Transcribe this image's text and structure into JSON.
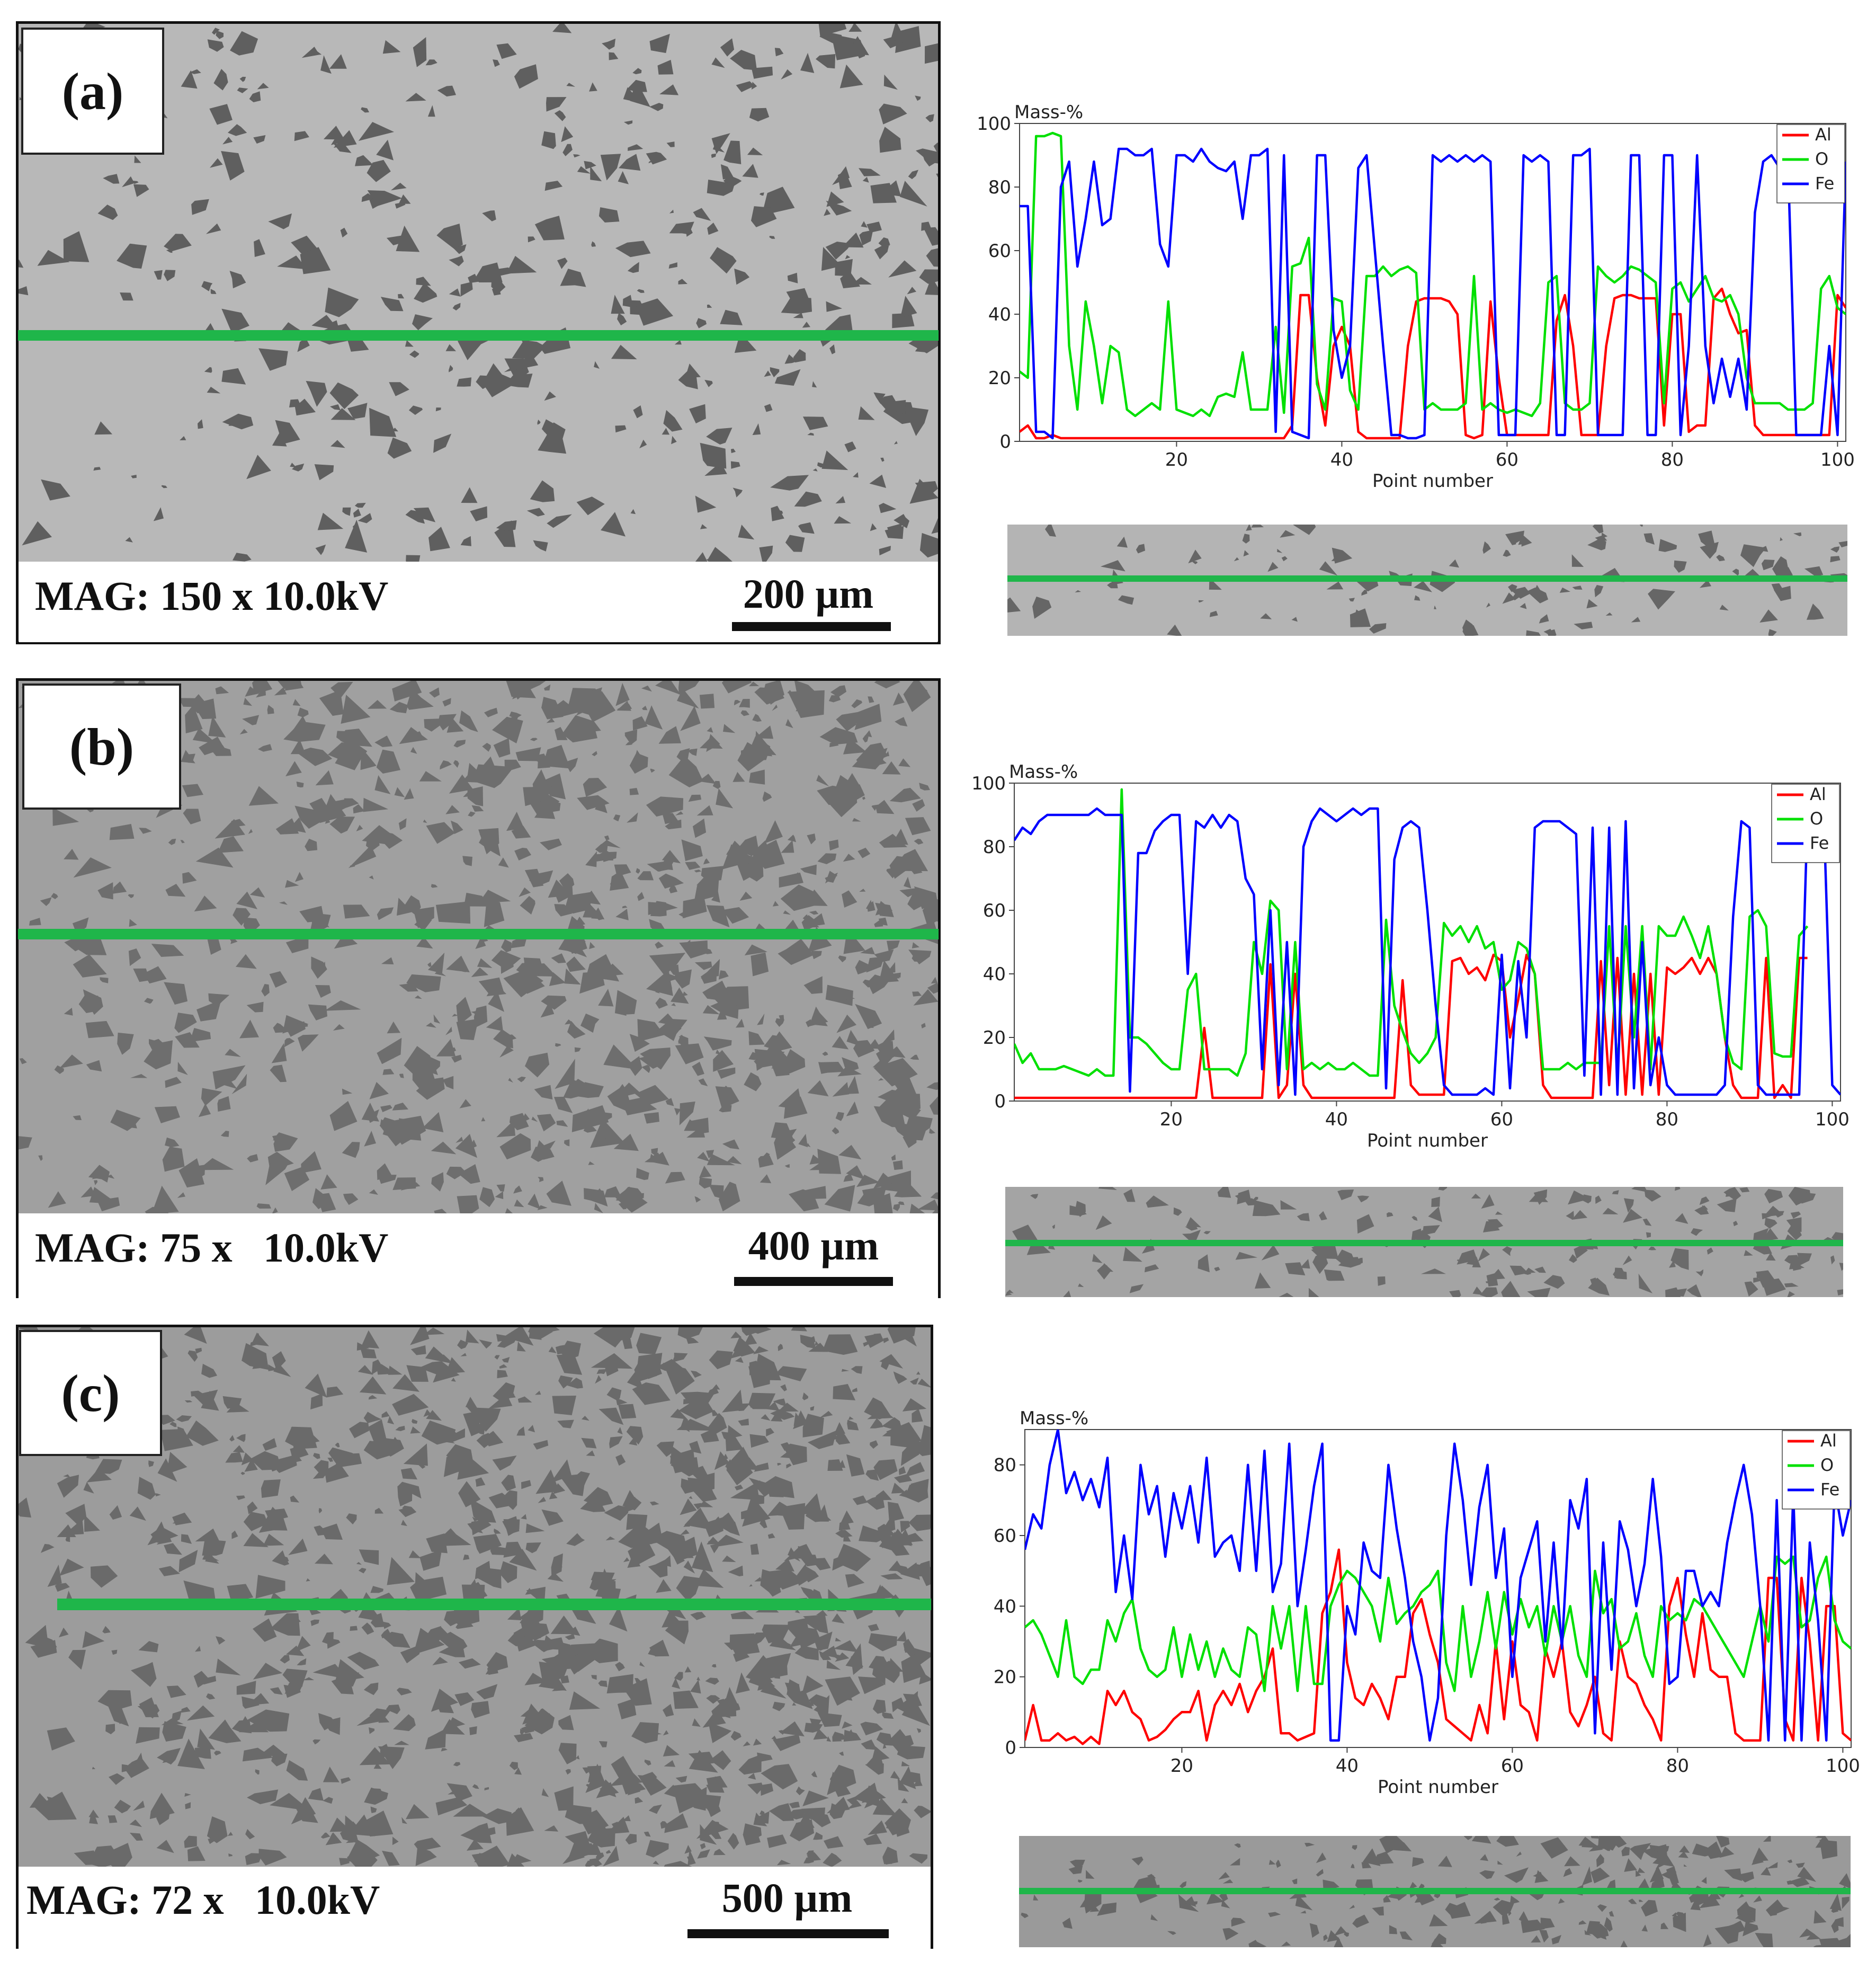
{
  "panels": [
    {
      "label": "(a)",
      "mag": "MAG: 150 x 10.0kV",
      "scale": "200 µm"
    },
    {
      "label": "(b)",
      "mag": "MAG: 75 x   10.0kV",
      "scale": "400 µm"
    },
    {
      "label": "(c)",
      "mag": "MAG: 72 x   10.0kV",
      "scale": "500 µm"
    }
  ],
  "colors": {
    "Al": "#ff0000",
    "O": "#00e000",
    "Fe": "#0000ff",
    "scan_line": "#1fb64a"
  },
  "chart_data": [
    {
      "type": "line",
      "ylabel": "Mass-%",
      "xlabel": "Point number",
      "xlim": [
        1,
        101
      ],
      "ylim": [
        0,
        100
      ],
      "xticks": [
        20,
        40,
        60,
        80,
        100
      ],
      "yticks": [
        0,
        20,
        40,
        60,
        80,
        100
      ],
      "legend": "top-right",
      "series": [
        {
          "name": "Al",
          "color": "#ff0000",
          "values": [
            3,
            5,
            1,
            1,
            2,
            1,
            1,
            1,
            1,
            1,
            1,
            1,
            1,
            1,
            1,
            1,
            1,
            1,
            1,
            1,
            1,
            1,
            1,
            1,
            1,
            1,
            1,
            1,
            1,
            1,
            1,
            1,
            1,
            5,
            46,
            46,
            20,
            5,
            30,
            36,
            30,
            3,
            1,
            1,
            1,
            1,
            1,
            30,
            44,
            45,
            45,
            45,
            44,
            40,
            2,
            1,
            2,
            44,
            20,
            2,
            2,
            2,
            2,
            2,
            2,
            38,
            46,
            30,
            2,
            2,
            2,
            30,
            45,
            46,
            46,
            45,
            45,
            45,
            5,
            40,
            40,
            3,
            5,
            5,
            45,
            48,
            40,
            34,
            35,
            5,
            2,
            2,
            2,
            2,
            2,
            2,
            2,
            2,
            2,
            46,
            42
          ]
        },
        {
          "name": "O",
          "color": "#00e000",
          "values": [
            22,
            20,
            96,
            96,
            97,
            96,
            30,
            10,
            44,
            30,
            12,
            30,
            28,
            10,
            8,
            10,
            12,
            10,
            44,
            10,
            9,
            8,
            10,
            8,
            14,
            15,
            14,
            28,
            10,
            10,
            10,
            36,
            9,
            55,
            56,
            64,
            18,
            10,
            45,
            44,
            16,
            10,
            52,
            52,
            55,
            52,
            54,
            55,
            53,
            10,
            12,
            10,
            10,
            10,
            12,
            52,
            10,
            12,
            10,
            9,
            10,
            9,
            8,
            12,
            50,
            52,
            12,
            10,
            10,
            12,
            55,
            52,
            50,
            52,
            55,
            54,
            52,
            50,
            12,
            48,
            50,
            44,
            48,
            52,
            45,
            44,
            46,
            40,
            20,
            12,
            12,
            12,
            12,
            10,
            10,
            10,
            12,
            48,
            52,
            42,
            40
          ]
        },
        {
          "name": "Fe",
          "color": "#0000ff",
          "values": [
            74,
            74,
            3,
            3,
            1,
            80,
            88,
            55,
            70,
            88,
            68,
            70,
            92,
            92,
            90,
            90,
            92,
            62,
            55,
            90,
            90,
            88,
            92,
            88,
            86,
            85,
            88,
            70,
            90,
            90,
            92,
            3,
            90,
            3,
            2,
            1,
            90,
            90,
            35,
            20,
            30,
            86,
            90,
            60,
            30,
            2,
            2,
            1,
            1,
            2,
            90,
            88,
            90,
            88,
            90,
            88,
            90,
            88,
            2,
            2,
            2,
            90,
            88,
            90,
            88,
            2,
            2,
            90,
            90,
            92,
            2,
            2,
            2,
            2,
            90,
            90,
            2,
            2,
            90,
            90,
            2,
            30,
            90,
            30,
            12,
            26,
            14,
            26,
            10,
            72,
            88,
            90,
            86,
            88,
            2,
            2,
            2,
            2,
            30,
            2,
            88
          ]
        }
      ]
    },
    {
      "type": "line",
      "ylabel": "Mass-%",
      "xlabel": "Point number",
      "xlim": [
        1,
        101
      ],
      "ylim": [
        0,
        100
      ],
      "xticks": [
        20,
        40,
        60,
        80,
        100
      ],
      "yticks": [
        0,
        20,
        40,
        60,
        80,
        100
      ],
      "legend": "top-right",
      "series": [
        {
          "name": "Al",
          "color": "#ff0000",
          "values": [
            1,
            1,
            1,
            1,
            1,
            1,
            1,
            1,
            1,
            1,
            1,
            1,
            1,
            1,
            1,
            1,
            1,
            1,
            1,
            1,
            1,
            1,
            1,
            23,
            1,
            1,
            1,
            1,
            1,
            1,
            1,
            43,
            1,
            5,
            40,
            5,
            1,
            1,
            1,
            1,
            1,
            1,
            1,
            1,
            1,
            1,
            1,
            38,
            5,
            2,
            2,
            2,
            2,
            44,
            45,
            40,
            42,
            38,
            46,
            44,
            20,
            32,
            46,
            40,
            5,
            1,
            1,
            1,
            1,
            1,
            1,
            44,
            5,
            45,
            2,
            40,
            2,
            40,
            2,
            42,
            40,
            42,
            45,
            40,
            45,
            40,
            20,
            5,
            1,
            1,
            1,
            45,
            1,
            5,
            1,
            45,
            45
          ]
        },
        {
          "name": "O",
          "color": "#00e000",
          "values": [
            18,
            12,
            15,
            10,
            10,
            10,
            11,
            10,
            9,
            8,
            10,
            8,
            8,
            98,
            20,
            20,
            18,
            15,
            12,
            10,
            10,
            35,
            40,
            10,
            10,
            10,
            10,
            8,
            15,
            50,
            40,
            63,
            60,
            10,
            50,
            10,
            12,
            10,
            12,
            10,
            10,
            12,
            10,
            8,
            8,
            57,
            30,
            22,
            15,
            12,
            15,
            20,
            56,
            52,
            55,
            50,
            55,
            48,
            50,
            35,
            38,
            50,
            48,
            40,
            10,
            10,
            10,
            12,
            10,
            12,
            12,
            12,
            55,
            10,
            55,
            20,
            55,
            10,
            55,
            52,
            52,
            58,
            52,
            45,
            55,
            40,
            20,
            12,
            10,
            58,
            60,
            55,
            15,
            14,
            14,
            52,
            55
          ]
        },
        {
          "name": "Fe",
          "color": "#0000ff",
          "values": [
            82,
            86,
            84,
            88,
            90,
            90,
            90,
            90,
            90,
            90,
            92,
            90,
            90,
            90,
            3,
            78,
            78,
            85,
            88,
            90,
            90,
            40,
            88,
            86,
            90,
            86,
            90,
            88,
            70,
            65,
            10,
            60,
            5,
            50,
            2,
            80,
            88,
            92,
            90,
            88,
            90,
            92,
            90,
            92,
            92,
            4,
            76,
            86,
            88,
            86,
            60,
            30,
            5,
            2,
            2,
            2,
            2,
            4,
            2,
            46,
            4,
            44,
            20,
            86,
            88,
            88,
            88,
            86,
            84,
            8,
            86,
            2,
            86,
            2,
            88,
            4,
            50,
            5,
            20,
            5,
            2,
            2,
            2,
            2,
            2,
            2,
            5,
            58,
            88,
            86,
            5,
            2,
            2,
            2,
            2,
            2,
            90,
            90,
            88,
            5,
            2
          ]
        }
      ]
    },
    {
      "type": "line",
      "ylabel": "Mass-%",
      "xlabel": "Point number",
      "xlim": [
        1,
        101
      ],
      "ylim": [
        0,
        90
      ],
      "xticks": [
        20,
        40,
        60,
        80,
        100
      ],
      "yticks": [
        0,
        20,
        40,
        60,
        80
      ],
      "legend": "top-right",
      "series": [
        {
          "name": "Al",
          "color": "#ff0000",
          "values": [
            2,
            12,
            2,
            2,
            4,
            2,
            3,
            1,
            3,
            1,
            16,
            12,
            16,
            10,
            8,
            2,
            3,
            5,
            8,
            10,
            10,
            16,
            2,
            12,
            16,
            12,
            18,
            10,
            16,
            20,
            28,
            4,
            4,
            2,
            3,
            4,
            38,
            44,
            56,
            24,
            14,
            12,
            18,
            14,
            8,
            20,
            20,
            38,
            42,
            32,
            24,
            8,
            6,
            4,
            2,
            12,
            4,
            30,
            8,
            30,
            12,
            10,
            2,
            28,
            20,
            30,
            10,
            6,
            12,
            20,
            4,
            2,
            30,
            20,
            18,
            12,
            8,
            2,
            40,
            48,
            32,
            20,
            38,
            22,
            20,
            20,
            4,
            2,
            2,
            2,
            48,
            48,
            8,
            2,
            48,
            30,
            2,
            40,
            40,
            4,
            2
          ]
        },
        {
          "name": "O",
          "color": "#00e000",
          "values": [
            34,
            36,
            32,
            26,
            20,
            36,
            20,
            18,
            22,
            22,
            36,
            30,
            38,
            42,
            28,
            22,
            20,
            22,
            34,
            20,
            32,
            22,
            30,
            20,
            28,
            22,
            20,
            34,
            32,
            16,
            40,
            28,
            40,
            16,
            40,
            18,
            18,
            40,
            46,
            50,
            48,
            44,
            40,
            30,
            48,
            35,
            38,
            40,
            44,
            46,
            50,
            24,
            16,
            40,
            20,
            30,
            44,
            28,
            44,
            32,
            42,
            34,
            40,
            26,
            40,
            30,
            40,
            26,
            20,
            50,
            38,
            42,
            28,
            30,
            38,
            26,
            20,
            40,
            36,
            38,
            36,
            42,
            40,
            36,
            32,
            28,
            24,
            20,
            30,
            40,
            30,
            54,
            52,
            54,
            34,
            36,
            48,
            54,
            36,
            30,
            28
          ]
        },
        {
          "name": "Fe",
          "color": "#0000ff",
          "values": [
            56,
            66,
            62,
            80,
            90,
            72,
            78,
            70,
            76,
            68,
            82,
            44,
            60,
            42,
            80,
            66,
            74,
            54,
            72,
            62,
            74,
            58,
            82,
            54,
            58,
            60,
            50,
            80,
            50,
            84,
            44,
            52,
            86,
            40,
            56,
            74,
            86,
            2,
            2,
            40,
            32,
            58,
            50,
            48,
            80,
            62,
            48,
            30,
            20,
            2,
            14,
            60,
            86,
            70,
            46,
            68,
            80,
            48,
            62,
            20,
            48,
            56,
            64,
            30,
            58,
            28,
            70,
            62,
            76,
            4,
            58,
            22,
            64,
            56,
            40,
            52,
            76,
            54,
            18,
            20,
            50,
            50,
            40,
            44,
            40,
            58,
            70,
            80,
            66,
            40,
            2,
            70,
            2,
            72,
            2,
            58,
            36,
            2,
            74,
            60,
            70
          ]
        }
      ]
    }
  ]
}
